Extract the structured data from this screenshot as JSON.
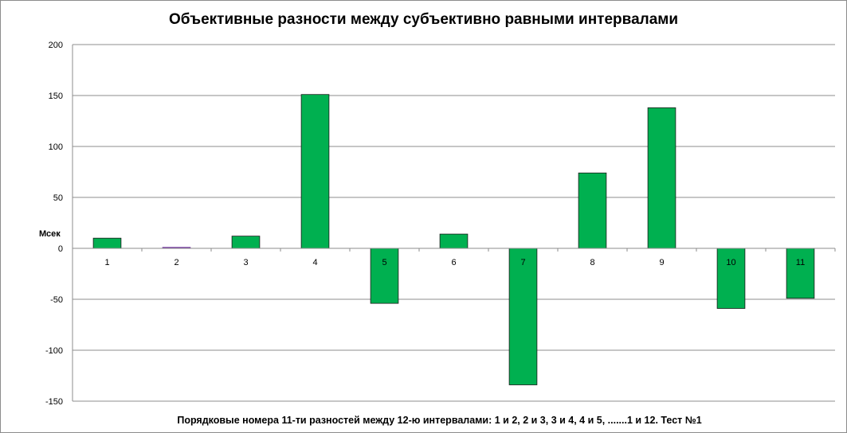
{
  "chart_data": {
    "type": "bar",
    "title": "Объективные разности между субъективно равными интервалами",
    "xlabel": "Порядковые номера 11-ти  разностей между 12-ю интервалами: 1 и 2, 2 и 3, 3 и 4,  4 и 5, .......1  и 12. Тест №1",
    "ylabel": "Мсек",
    "categories": [
      "1",
      "2",
      "3",
      "4",
      "5",
      "6",
      "7",
      "8",
      "9",
      "10",
      "11"
    ],
    "values": [
      10,
      1,
      12,
      151,
      -54,
      14,
      -134,
      74,
      138,
      -59,
      -49
    ],
    "ylim": [
      -150,
      200
    ],
    "yticks": [
      200,
      150,
      100,
      50,
      0,
      -50,
      -100,
      -150
    ],
    "grid": true,
    "legend": "none",
    "colors": {
      "bar_fill": "#00b050",
      "bar_edge": "#1a1a1a",
      "small_bar": "#7030a0",
      "grid": "#8c8c8c"
    }
  }
}
